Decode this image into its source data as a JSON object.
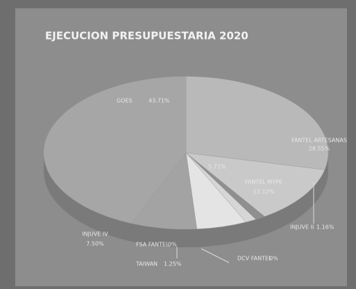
{
  "chart_data": {
    "type": "pie",
    "title": "EJECUCION PRESUPUESTARIA 2020",
    "categories": [
      "FANTEL ARTESANAS",
      "FANTEL MYPE",
      "INJUVE II",
      "DCV FANTEL",
      "TAIWAN",
      null,
      "FSA FANTEL",
      "INJUVE IV",
      "GOES"
    ],
    "values": [
      28.55,
      12.12,
      1.16,
      0,
      1.25,
      5.71,
      0,
      7.5,
      43.71
    ],
    "value_labels": [
      "28.55%",
      "12.12%",
      "1.16%",
      "0%",
      "1.25%",
      "5.71%",
      "0%",
      "7.50%",
      "43.71%"
    ],
    "colors": [
      "#b9b9b9",
      "#c9c9c9",
      "#8f8f8f",
      "#8f8f8f",
      "#d6d6d6",
      "#e4e4e4",
      "#9a9a9a",
      "#a3a3a3",
      "#a6a6a6"
    ]
  }
}
